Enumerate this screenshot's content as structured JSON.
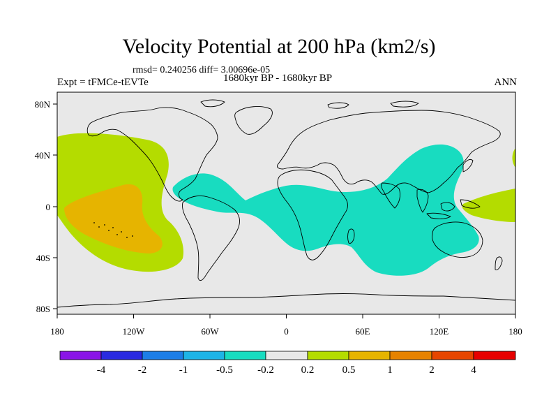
{
  "header": {
    "title": "Velocity Potential at 200 hPa (km2/s)",
    "stats": "rmsd= 0.240256 diff= 3.00696e-05",
    "experiment": "Expt = tFMCe-tEVTe",
    "period": "1680kyr BP - 1680kyr BP",
    "season": "ANN"
  },
  "map": {
    "lon_ticks": [
      "180",
      "120W",
      "60W",
      "0",
      "60E",
      "120E",
      "180"
    ],
    "lat_ticks": [
      "80N",
      "40N",
      "0",
      "40S",
      "80S"
    ],
    "background_color": "#e8e8e8",
    "coastline_color": "#000000"
  },
  "colorbar": {
    "colors": [
      "#8a14e6",
      "#2a2ae0",
      "#1d7ee6",
      "#1eb4e6",
      "#18dcc0",
      "#e8e8e8",
      "#b4dc00",
      "#e6b400",
      "#e68200",
      "#e64600",
      "#e60000"
    ],
    "labels": [
      "-4",
      "-2",
      "-1",
      "-0.5",
      "-0.2",
      "0.2",
      "0.5",
      "1",
      "2",
      "4"
    ]
  },
  "regions": [
    {
      "name": "positive-anomaly-east-pacific",
      "level": "0.2 to 0.5",
      "color": "#b4dc00"
    },
    {
      "name": "positive-anomaly-core",
      "level": "0.5 to 1",
      "color": "#e6b400"
    },
    {
      "name": "negative-anomaly-atlantic-indian",
      "level": "-0.5 to -0.2",
      "color": "#18dcc0"
    },
    {
      "name": "positive-anomaly-west-pacific",
      "level": "0.2 to 0.5",
      "color": "#b4dc00"
    }
  ]
}
